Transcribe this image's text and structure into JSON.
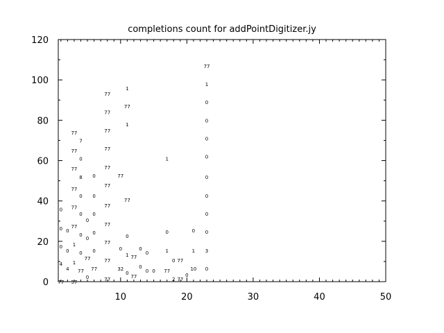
{
  "chart_data": {
    "type": "scatter",
    "title": "completions count for addPointDigitizer.jy",
    "xlabel": "",
    "ylabel": "",
    "xlim": [
      0.6,
      50
    ],
    "ylim": [
      0,
      120
    ],
    "xticks": [
      10,
      20,
      30,
      40,
      50
    ],
    "yticks": [
      0,
      20,
      40,
      60,
      80,
      100,
      120
    ],
    "grid": false,
    "marker": "text-label",
    "points": [
      [
        1,
        0,
        "77"
      ],
      [
        1,
        9,
        "4"
      ],
      [
        1,
        17.5,
        "0"
      ],
      [
        1,
        26.5,
        "0"
      ],
      [
        1,
        36,
        "0"
      ],
      [
        2,
        6.5,
        "4"
      ],
      [
        2,
        15.5,
        "0"
      ],
      [
        2,
        25.5,
        "0"
      ],
      [
        3,
        0,
        "57"
      ],
      [
        3,
        9.6,
        "1"
      ],
      [
        3,
        18.6,
        "1"
      ],
      [
        3,
        27.5,
        "77"
      ],
      [
        3,
        37,
        "77"
      ],
      [
        3,
        46,
        "77"
      ],
      [
        3,
        56,
        "77"
      ],
      [
        3,
        65,
        "77"
      ],
      [
        3,
        74,
        "77"
      ],
      [
        4,
        5.5,
        "77"
      ],
      [
        4,
        14.5,
        "0"
      ],
      [
        4,
        23.4,
        "0"
      ],
      [
        4,
        33.7,
        "0"
      ],
      [
        4,
        42.6,
        "0"
      ],
      [
        4,
        52,
        "8"
      ],
      [
        4,
        61,
        "0"
      ],
      [
        4,
        70,
        "7"
      ],
      [
        5,
        2.4,
        "0"
      ],
      [
        5,
        11.7,
        "77"
      ],
      [
        5,
        21.7,
        "0"
      ],
      [
        5,
        30.6,
        "0"
      ],
      [
        6,
        6.5,
        "77"
      ],
      [
        6,
        15.5,
        "0"
      ],
      [
        6,
        24.4,
        "0"
      ],
      [
        6,
        33.7,
        "0"
      ],
      [
        6,
        42.6,
        "0"
      ],
      [
        6,
        52.6,
        "0"
      ],
      [
        8,
        1.4,
        "77"
      ],
      [
        8,
        10.7,
        "77"
      ],
      [
        8,
        19.6,
        "77"
      ],
      [
        8,
        28.5,
        "77"
      ],
      [
        8,
        37.8,
        "77"
      ],
      [
        8,
        47.8,
        "77"
      ],
      [
        8,
        56.7,
        "77"
      ],
      [
        8,
        66,
        "77"
      ],
      [
        8,
        75,
        "77"
      ],
      [
        8,
        84,
        "77"
      ],
      [
        8,
        93.2,
        "77"
      ],
      [
        10,
        6.5,
        "32"
      ],
      [
        10,
        16.5,
        "0"
      ],
      [
        10,
        52.6,
        "77"
      ],
      [
        11,
        4.5,
        "0"
      ],
      [
        11,
        13.4,
        "1"
      ],
      [
        11,
        22.7,
        "0"
      ],
      [
        11,
        40.6,
        "77"
      ],
      [
        11,
        78,
        "1"
      ],
      [
        11,
        87,
        "77"
      ],
      [
        11,
        96,
        "1"
      ],
      [
        12,
        2.8,
        "77"
      ],
      [
        12,
        12.4,
        "77"
      ],
      [
        13,
        7.6,
        "0"
      ],
      [
        13,
        16.5,
        "0"
      ],
      [
        14,
        5.5,
        "0"
      ],
      [
        14,
        14.5,
        "0"
      ],
      [
        15,
        5.5,
        "0"
      ],
      [
        17,
        5.5,
        "77"
      ],
      [
        17,
        15.5,
        "1"
      ],
      [
        17,
        24.8,
        "0"
      ],
      [
        17,
        61,
        "1"
      ],
      [
        18,
        1.4,
        "2"
      ],
      [
        18,
        10.7,
        "0"
      ],
      [
        19,
        1.4,
        "77"
      ],
      [
        19,
        10.7,
        "77"
      ],
      [
        20,
        3.4,
        "0"
      ],
      [
        21,
        6.5,
        "10"
      ],
      [
        21,
        15.5,
        "1"
      ],
      [
        21,
        25.5,
        "0"
      ],
      [
        23,
        6.5,
        "0"
      ],
      [
        23,
        15.5,
        "3"
      ],
      [
        23,
        24.8,
        "0"
      ],
      [
        23,
        33.7,
        "0"
      ],
      [
        23,
        42.6,
        "0"
      ],
      [
        23,
        52,
        "0"
      ],
      [
        23,
        62,
        "0"
      ],
      [
        23,
        71,
        "0"
      ],
      [
        23,
        80,
        "0"
      ],
      [
        23,
        89,
        "0"
      ],
      [
        23,
        98,
        "1"
      ],
      [
        23,
        107,
        "77"
      ]
    ]
  }
}
